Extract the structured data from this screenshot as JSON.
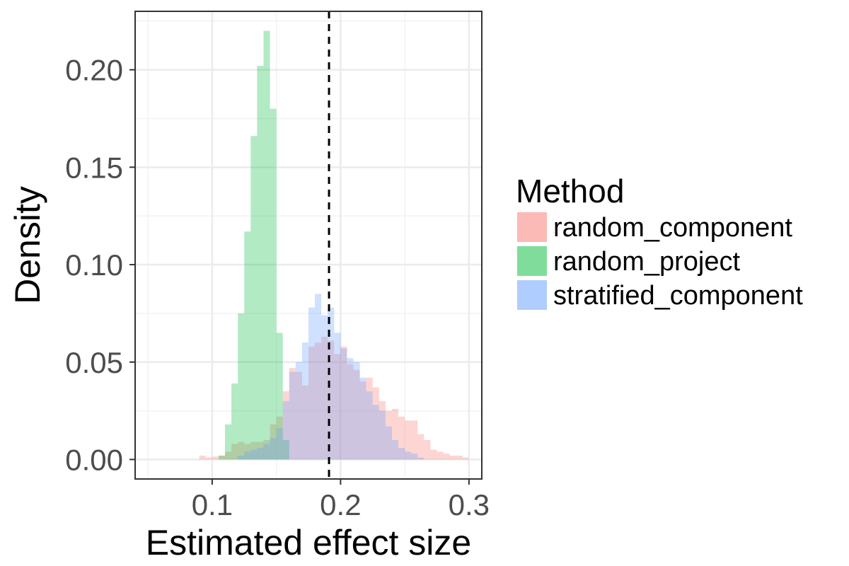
{
  "chart_data": {
    "type": "bar",
    "subtype": "overlaid-histogram",
    "xlabel": "Estimated effect size",
    "ylabel": "Density",
    "xlim": [
      0.04,
      0.31
    ],
    "ylim": [
      -0.01,
      0.23
    ],
    "x_ticks": [
      "0.1",
      "0.2",
      "0.3"
    ],
    "x_tick_values": [
      0.1,
      0.2,
      0.3
    ],
    "y_ticks": [
      "0.00",
      "0.05",
      "0.10",
      "0.15",
      "0.20"
    ],
    "y_tick_values": [
      0.0,
      0.05,
      0.1,
      0.15,
      0.2
    ],
    "bin_width": 0.005,
    "grid": true,
    "reference_line": {
      "x": 0.191,
      "style": "dashed",
      "color": "#000000"
    },
    "legend": {
      "title": "Method",
      "position": "right"
    },
    "series": [
      {
        "name": "random_component",
        "color": "#f8766d",
        "x": [
          0.0925,
          0.0975,
          0.1025,
          0.1075,
          0.1125,
          0.1175,
          0.1225,
          0.1275,
          0.1325,
          0.1375,
          0.1425,
          0.1475,
          0.1525,
          0.1575,
          0.1625,
          0.1675,
          0.1725,
          0.1775,
          0.1825,
          0.1875,
          0.1925,
          0.1975,
          0.2025,
          0.2075,
          0.2125,
          0.2175,
          0.2225,
          0.2275,
          0.2325,
          0.2375,
          0.2425,
          0.2475,
          0.2525,
          0.2575,
          0.2625,
          0.2675,
          0.2725,
          0.2775,
          0.2825,
          0.2875,
          0.2925,
          0.2975
        ],
        "values": [
          0.002,
          0.001,
          0.0015,
          0.002,
          0.004,
          0.008,
          0.009,
          0.008,
          0.009,
          0.009,
          0.01,
          0.018,
          0.022,
          0.035,
          0.047,
          0.045,
          0.038,
          0.058,
          0.06,
          0.063,
          0.061,
          0.054,
          0.058,
          0.049,
          0.046,
          0.04,
          0.042,
          0.037,
          0.03,
          0.025,
          0.026,
          0.022,
          0.02,
          0.02,
          0.013,
          0.01,
          0.005,
          0.004,
          0.003,
          0.002,
          0.002,
          0.001
        ]
      },
      {
        "name": "random_project",
        "color": "#00ba38",
        "x": [
          0.1075,
          0.1125,
          0.1175,
          0.1225,
          0.1275,
          0.1325,
          0.1375,
          0.1425,
          0.1475,
          0.1525,
          0.1575
        ],
        "values": [
          0.002,
          0.018,
          0.039,
          0.075,
          0.117,
          0.166,
          0.202,
          0.22,
          0.18,
          0.065,
          0.01
        ]
      },
      {
        "name": "stratified_component",
        "color": "#619cff",
        "x": [
          0.1225,
          0.1275,
          0.1325,
          0.1375,
          0.1425,
          0.1475,
          0.1525,
          0.1575,
          0.1625,
          0.1675,
          0.1725,
          0.1775,
          0.1825,
          0.1875,
          0.1925,
          0.1975,
          0.2025,
          0.2075,
          0.2125,
          0.2175,
          0.2225,
          0.2275,
          0.2325,
          0.2375,
          0.2425,
          0.2475,
          0.2525,
          0.2575,
          0.2625
        ],
        "values": [
          0.002,
          0.004,
          0.005,
          0.006,
          0.008,
          0.011,
          0.016,
          0.03,
          0.045,
          0.05,
          0.06,
          0.078,
          0.085,
          0.074,
          0.078,
          0.065,
          0.057,
          0.052,
          0.05,
          0.042,
          0.035,
          0.028,
          0.025,
          0.017,
          0.01,
          0.006,
          0.004,
          0.003,
          0.001
        ]
      }
    ]
  }
}
